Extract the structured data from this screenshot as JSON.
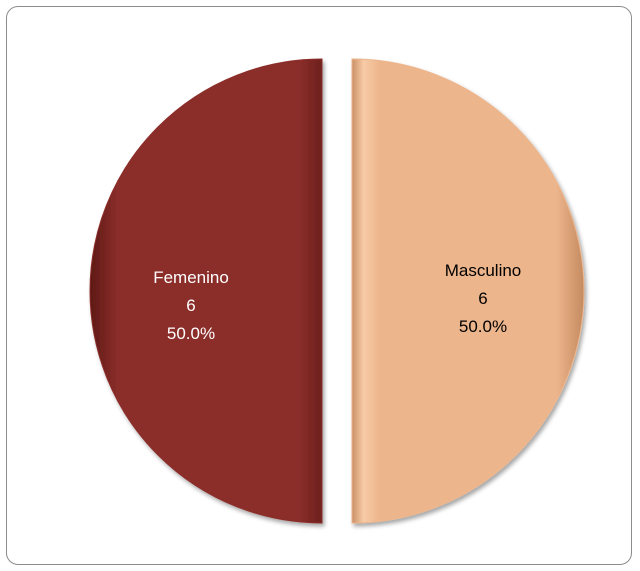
{
  "chart_data": {
    "type": "pie",
    "title": "",
    "slices": [
      {
        "label": "Femenino",
        "value": 6,
        "percent": "50.0%",
        "color": "#8b2e2a",
        "label_color": "#ffffff"
      },
      {
        "label": "Masculino",
        "value": 6,
        "percent": "50.0%",
        "color": "#edb58c",
        "label_color": "#000000"
      }
    ],
    "legend": false,
    "exploded": true
  }
}
